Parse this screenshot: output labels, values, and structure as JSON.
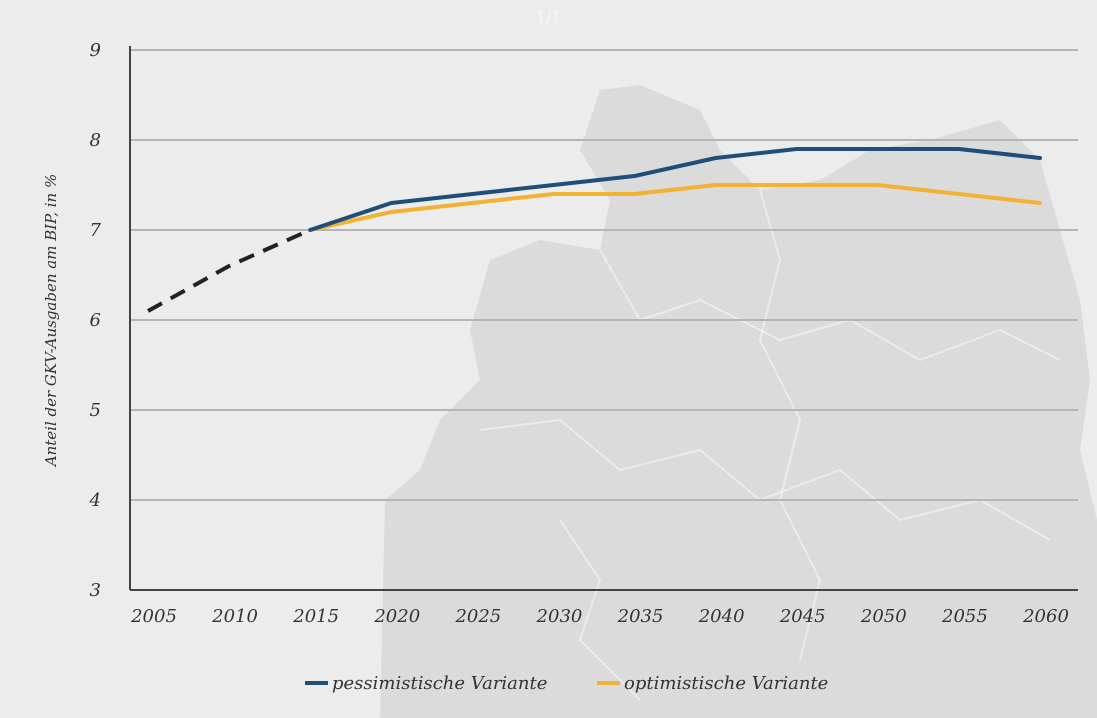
{
  "page_indicator": "1/1",
  "chart_data": {
    "type": "line",
    "title": "",
    "xlabel": "",
    "ylabel": "Anteil der GKV-Ausgaben am BIP, in %",
    "x": [
      2005,
      2010,
      2015,
      2020,
      2025,
      2030,
      2035,
      2040,
      2045,
      2050,
      2055,
      2060
    ],
    "ylim": [
      3,
      9
    ],
    "yticks": [
      3,
      4,
      5,
      6,
      7,
      8,
      9
    ],
    "grid": true,
    "historical": {
      "name": "",
      "x": [
        2005,
        2010,
        2015
      ],
      "values": [
        6.1,
        6.6,
        7.0
      ],
      "color": "#222222",
      "style": "dashed"
    },
    "series": [
      {
        "name": "pessimistische Variante",
        "x": [
          2015,
          2020,
          2025,
          2030,
          2035,
          2040,
          2045,
          2050,
          2055,
          2060
        ],
        "values": [
          7.0,
          7.3,
          7.4,
          7.5,
          7.6,
          7.8,
          7.9,
          7.9,
          7.9,
          7.8
        ],
        "color": "#1f4e79"
      },
      {
        "name": "optimistische Variante",
        "x": [
          2015,
          2020,
          2025,
          2030,
          2035,
          2040,
          2045,
          2050,
          2055,
          2060
        ],
        "values": [
          7.0,
          7.2,
          7.3,
          7.4,
          7.4,
          7.5,
          7.5,
          7.5,
          7.4,
          7.3
        ],
        "color": "#f2b233"
      }
    ],
    "legend_position": "bottom-center"
  }
}
